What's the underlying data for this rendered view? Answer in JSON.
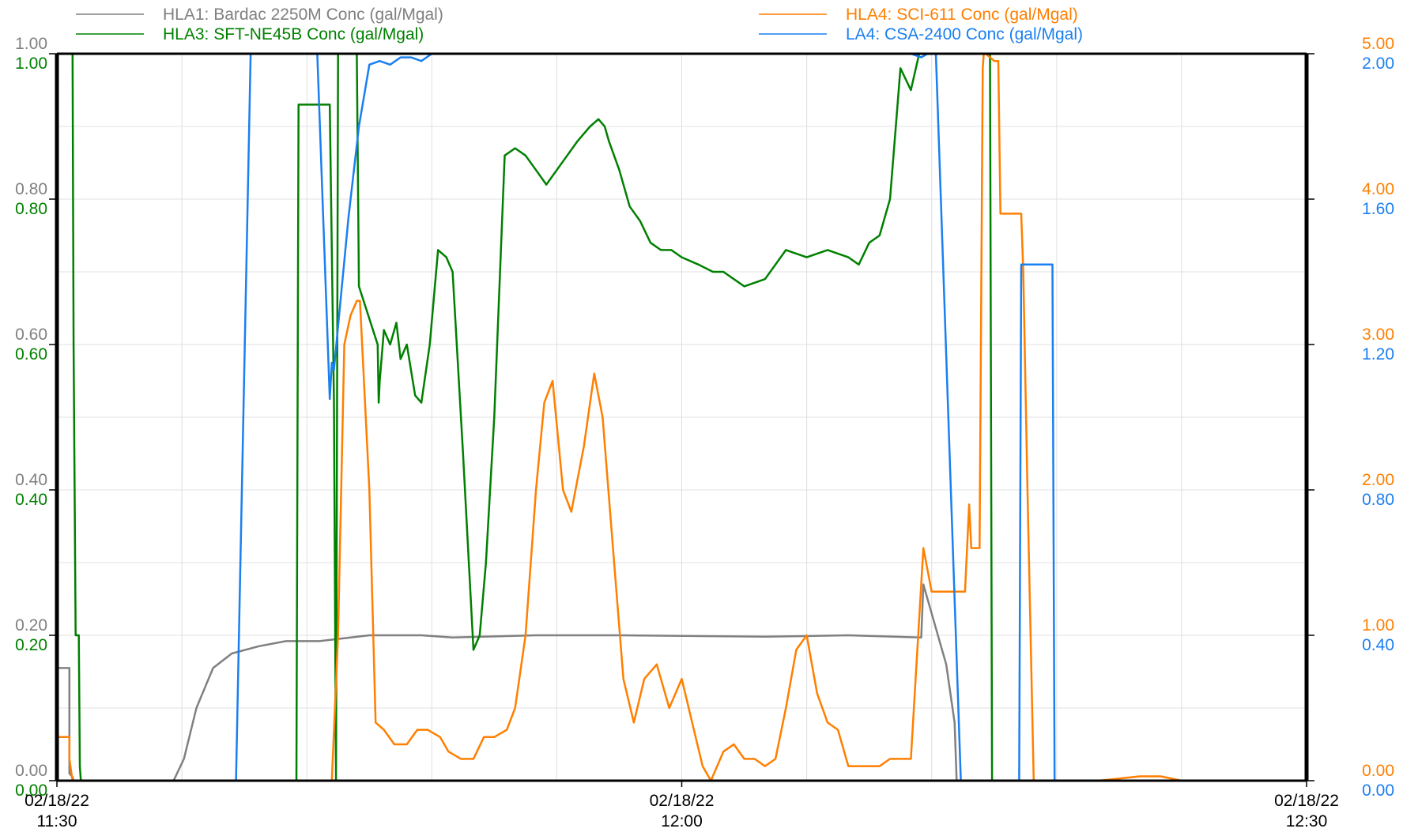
{
  "chart_data": {
    "type": "line",
    "x_range_minutes": [
      0,
      60
    ],
    "x_ticks": [
      {
        "minute": 0,
        "date": "02/18/22",
        "time": "11:30"
      },
      {
        "minute": 30,
        "date": "02/18/22",
        "time": "12:00"
      },
      {
        "minute": 60,
        "date": "02/18/22",
        "time": "12:30"
      }
    ],
    "grid": true,
    "legend_position": "top",
    "axes": [
      {
        "id": "hla1",
        "side": "left",
        "color": "#808080",
        "ylim": [
          0,
          1.0
        ],
        "ticks": [
          "0.00",
          "0.20",
          "0.40",
          "0.60",
          "0.80",
          "1.00"
        ]
      },
      {
        "id": "hla3",
        "side": "left",
        "color": "#008000",
        "ylim": [
          0,
          1.0
        ],
        "ticks": [
          "0.00",
          "0.20",
          "0.40",
          "0.60",
          "0.80",
          "1.00"
        ]
      },
      {
        "id": "hla4",
        "side": "right",
        "color": "#ff7f00",
        "ylim": [
          0,
          5.0
        ],
        "ticks": [
          "0.00",
          "1.00",
          "2.00",
          "3.00",
          "4.00",
          "5.00"
        ]
      },
      {
        "id": "la4",
        "side": "right",
        "color": "#1a7ff0",
        "ylim": [
          0,
          2.0
        ],
        "ticks": [
          "0.00",
          "0.40",
          "0.80",
          "1.20",
          "1.60",
          "2.00"
        ]
      }
    ],
    "series": [
      {
        "name": "HLA1: Bardac 2250M Conc (gal/Mgal)",
        "axis": "hla1",
        "color": "#808080",
        "legend_col": 0,
        "x": [
          0,
          0.6,
          0.6,
          0.75,
          0.8,
          5.6,
          6.1,
          6.7,
          7.5,
          8.4,
          9.7,
          11.0,
          12.6,
          15.0,
          17.5,
          19.0,
          23.0,
          27.0,
          34.0,
          38.0,
          41.5,
          41.6,
          42.7,
          43.1,
          43.2,
          60
        ],
        "y": [
          0.155,
          0.155,
          0.01,
          0.005,
          0.0,
          0.0,
          0.03,
          0.1,
          0.155,
          0.175,
          0.185,
          0.192,
          0.192,
          0.2,
          0.2,
          0.197,
          0.2,
          0.2,
          0.198,
          0.2,
          0.197,
          0.27,
          0.16,
          0.08,
          0.0,
          0.0
        ]
      },
      {
        "name": "HLA3: SFT-NE45B Conc (gal/Mgal)",
        "axis": "hla3",
        "color": "#008000",
        "legend_col": 0,
        "x": [
          0,
          0.75,
          0.8,
          0.9,
          0.95,
          1.0,
          1.05,
          1.1,
          1.15,
          1.2,
          1.3,
          11.5,
          11.6,
          13.1,
          13.3,
          13.4,
          13.5,
          14.4,
          14.5,
          15.4,
          15.45,
          15.5,
          15.7,
          16.0,
          16.3,
          16.5,
          16.8,
          17.2,
          17.5,
          17.9,
          18.3,
          18.7,
          19.0,
          19.5,
          20.0,
          20.3,
          20.6,
          21.0,
          21.5,
          22.0,
          22.5,
          23.0,
          23.5,
          24.0,
          24.5,
          25.0,
          25.3,
          25.6,
          26.0,
          26.3,
          26.5,
          27.0,
          27.5,
          28.0,
          28.5,
          29.0,
          29.5,
          30.0,
          30.8,
          31.5,
          32.0,
          32.5,
          33.0,
          34.0,
          35.0,
          36.0,
          37.0,
          38.0,
          38.5,
          39.0,
          39.5,
          40.0,
          40.5,
          41.0,
          41.4,
          41.5,
          41.6,
          41.7,
          41.8,
          42.0,
          42.5,
          43.1,
          43.3,
          44.8,
          44.9,
          45.0,
          60
        ],
        "y": [
          1.0,
          1.0,
          0.6,
          0.2,
          0.2,
          0.2,
          0.2,
          0.02,
          0.0,
          0.0,
          0.0,
          0.0,
          0.93,
          0.93,
          0.52,
          0.0,
          1.0,
          1.0,
          0.68,
          0.6,
          0.52,
          0.55,
          0.62,
          0.6,
          0.63,
          0.58,
          0.6,
          0.53,
          0.52,
          0.6,
          0.73,
          0.72,
          0.7,
          0.45,
          0.18,
          0.2,
          0.3,
          0.5,
          0.86,
          0.87,
          0.86,
          0.84,
          0.82,
          0.84,
          0.86,
          0.88,
          0.89,
          0.9,
          0.91,
          0.9,
          0.88,
          0.84,
          0.79,
          0.77,
          0.74,
          0.73,
          0.73,
          0.72,
          0.71,
          0.7,
          0.7,
          0.69,
          0.68,
          0.69,
          0.73,
          0.72,
          0.73,
          0.72,
          0.71,
          0.74,
          0.75,
          0.8,
          0.98,
          0.95,
          1.0,
          1.0,
          1.0,
          1.0,
          1.0,
          1.0,
          1.0,
          1.0,
          1.0,
          1.0,
          0.0,
          0.0,
          0.0
        ]
      },
      {
        "name": "HLA4: SCI-611 Conc (gal/Mgal)",
        "axis": "hla4",
        "color": "#ff7f00",
        "legend_col": 1,
        "x": [
          0,
          0.6,
          0.6,
          0.7,
          0.75,
          13.2,
          13.5,
          13.8,
          14.1,
          14.4,
          14.55,
          15.0,
          15.3,
          15.7,
          16.2,
          16.8,
          17.3,
          17.8,
          18.4,
          18.8,
          19.4,
          20.0,
          20.5,
          21.0,
          21.6,
          22.0,
          22.5,
          23.0,
          23.4,
          23.8,
          24.3,
          24.7,
          25.3,
          25.8,
          26.2,
          26.7,
          27.2,
          27.7,
          28.2,
          28.8,
          29.4,
          30.0,
          30.5,
          31.0,
          31.4,
          32.0,
          32.5,
          33.0,
          33.5,
          34.0,
          34.5,
          35.0,
          35.5,
          36.0,
          36.5,
          37.0,
          37.5,
          38.0,
          38.5,
          39.0,
          39.5,
          40.0,
          40.5,
          41.0,
          41.6,
          42.0,
          42.2,
          43.0,
          43.6,
          43.8,
          43.9,
          44.3,
          44.45,
          44.5,
          44.6,
          45.0,
          45.2,
          45.3,
          46.3,
          46.4,
          46.6,
          46.9,
          47.0,
          47.2,
          47.3,
          48.0,
          50.0,
          52.0,
          53.0,
          54.0,
          54.5,
          60
        ],
        "y": [
          0.3,
          0.3,
          0.15,
          0.05,
          0.0,
          0.0,
          1.0,
          3.0,
          3.2,
          3.3,
          3.3,
          2.0,
          0.4,
          0.35,
          0.25,
          0.25,
          0.35,
          0.35,
          0.3,
          0.2,
          0.15,
          0.15,
          0.3,
          0.3,
          0.35,
          0.5,
          1.0,
          2.0,
          2.6,
          2.75,
          2.0,
          1.85,
          2.3,
          2.8,
          2.5,
          1.6,
          0.7,
          0.4,
          0.7,
          0.8,
          0.5,
          0.7,
          0.4,
          0.1,
          0.0,
          0.2,
          0.25,
          0.15,
          0.15,
          0.1,
          0.15,
          0.5,
          0.9,
          1.0,
          0.6,
          0.4,
          0.35,
          0.1,
          0.1,
          0.1,
          0.1,
          0.15,
          0.15,
          0.15,
          1.6,
          1.3,
          1.3,
          1.3,
          1.3,
          1.9,
          1.6,
          1.6,
          4.9,
          5.0,
          5.0,
          4.95,
          4.95,
          3.9,
          3.9,
          3.5,
          2.0,
          0.0,
          0.0,
          0.0,
          0.0,
          0.0,
          0.0,
          0.03,
          0.03,
          0.0,
          0.0,
          0.0
        ]
      },
      {
        "name": "LA4: CSA-2400 Conc (gal/Mgal)",
        "axis": "la4",
        "color": "#1a7ff0",
        "legend_col": 1,
        "x": [
          0,
          8.6,
          9.3,
          12.5,
          13.1,
          13.2,
          13.3,
          13.5,
          14.0,
          14.5,
          15.0,
          15.5,
          16.0,
          16.5,
          17.0,
          17.5,
          18.0,
          19.0,
          20.0,
          25.0,
          30.0,
          35.0,
          41.0,
          41.5,
          41.8,
          42.2,
          43.4,
          43.6,
          46.2,
          46.3,
          47.8,
          47.9,
          48.1,
          60
        ],
        "y": [
          0.0,
          0.0,
          2.0,
          2.0,
          1.05,
          1.15,
          1.13,
          1.25,
          1.55,
          1.8,
          1.97,
          1.98,
          1.97,
          1.99,
          1.99,
          1.98,
          2.0,
          2.0,
          2.0,
          2.0,
          2.0,
          2.0,
          2.0,
          1.99,
          2.0,
          2.0,
          0.0,
          0.0,
          0.0,
          1.42,
          1.42,
          0.0,
          0.0,
          0.0
        ]
      }
    ]
  }
}
